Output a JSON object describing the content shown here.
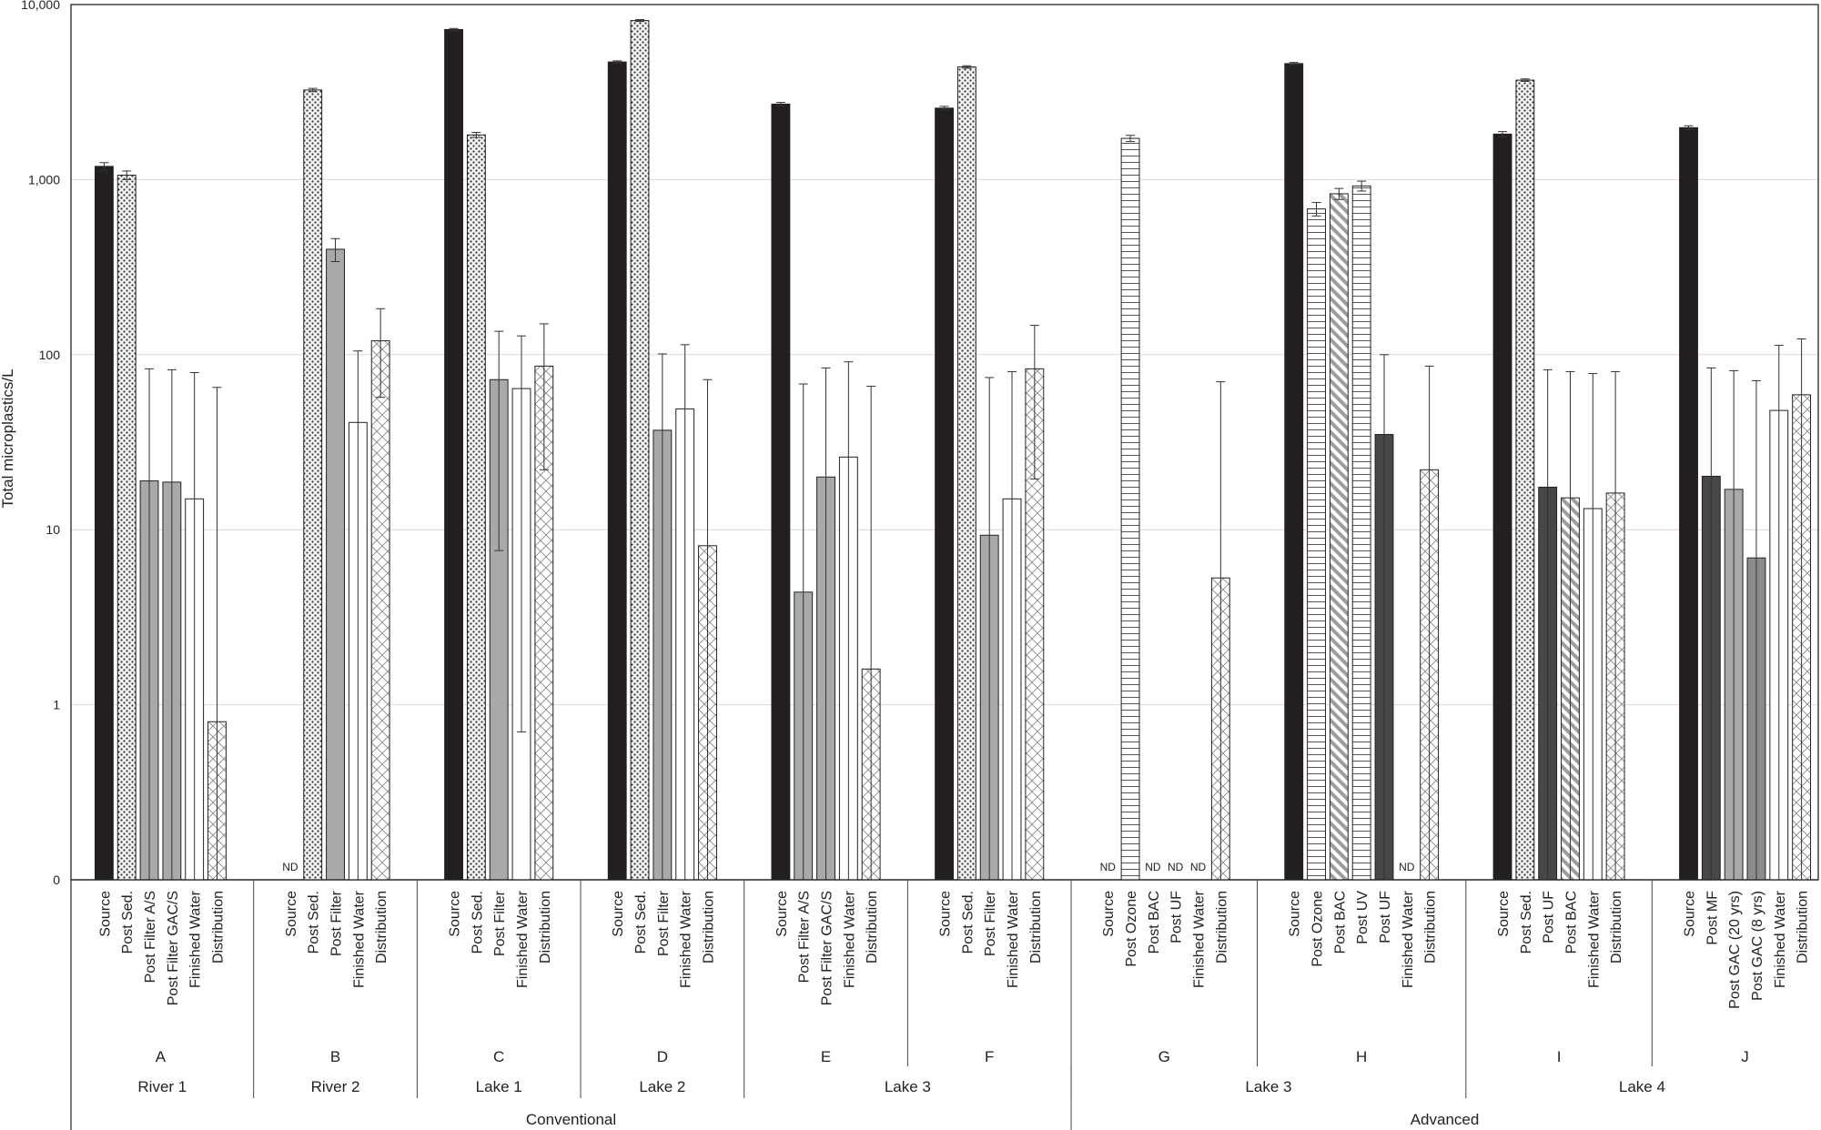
{
  "chart_data": {
    "type": "bar",
    "title": "",
    "ylabel": "Total microplastics/L",
    "xlabel": "",
    "yscale": "log",
    "ylim": [
      0.1,
      10000
    ],
    "yticks": [
      {
        "value": 0.1,
        "label": "0"
      },
      {
        "value": 1,
        "label": "1"
      },
      {
        "value": 10,
        "label": "10"
      },
      {
        "value": 100,
        "label": "100"
      },
      {
        "value": 1000,
        "label": "1,000"
      },
      {
        "value": 10000,
        "label": "10,000"
      }
    ],
    "grid": true,
    "nd_label": "ND",
    "colors": {
      "source": "#231f20",
      "sed": "#ececec",
      "filter": "#a9a9a9",
      "finished": "#ffffff",
      "distribution": "#f4f4f4",
      "ozone": "#ffffff",
      "bac": "#d8d8d8",
      "uf": "#474747",
      "gac8": "#8c8c8c",
      "gridline": "#d9d9d9",
      "axis": "#222222"
    },
    "plants": [
      {
        "name": "A",
        "source_type": "River 1",
        "treatment": "Conventional",
        "bars": [
          {
            "label": "Source",
            "value": 1190,
            "err": [
              1130,
              1250
            ],
            "pattern": "source"
          },
          {
            "label": "Post Sed.",
            "value": 1060,
            "err": [
              1000,
              1120
            ],
            "pattern": "sed"
          },
          {
            "label": "Post Filter A/S",
            "value": 19,
            "err": [
              0.1,
              83
            ],
            "pattern": "filter"
          },
          {
            "label": "Post Filter GAC/S",
            "value": 18.7,
            "err": [
              0.1,
              82
            ],
            "pattern": "filter"
          },
          {
            "label": "Finished Water",
            "value": 15,
            "err": [
              0.1,
              79
            ],
            "pattern": "finished"
          },
          {
            "label": "Distribution",
            "value": 0.8,
            "err": [
              0.1,
              65
            ],
            "pattern": "distribution"
          }
        ]
      },
      {
        "name": "B",
        "source_type": "River 2",
        "treatment": "Conventional",
        "bars": [
          {
            "label": "Source",
            "value": null,
            "nd": true
          },
          {
            "label": "Post Sed.",
            "value": 3250,
            "err": [
              3180,
              3320
            ],
            "pattern": "sed"
          },
          {
            "label": "Post Filter",
            "value": 400,
            "err": [
              340,
              460
            ],
            "pattern": "filter"
          },
          {
            "label": "Finished Water",
            "value": 41,
            "err": [
              0.1,
              105
            ],
            "pattern": "finished"
          },
          {
            "label": "Distribution",
            "value": 120,
            "err": [
              57,
              183
            ],
            "pattern": "distribution"
          }
        ]
      },
      {
        "name": "C",
        "source_type": "Lake 1",
        "treatment": "Conventional",
        "bars": [
          {
            "label": "Source",
            "value": 7200,
            "err": [
              7100,
              7300
            ],
            "pattern": "source"
          },
          {
            "label": "Post Sed.",
            "value": 1800,
            "err": [
              1740,
              1860
            ],
            "pattern": "sed"
          },
          {
            "label": "Post Filter",
            "value": 72,
            "err": [
              7.6,
              136
            ],
            "pattern": "filter"
          },
          {
            "label": "Finished Water",
            "value": 64,
            "err": [
              0.7,
              128
            ],
            "pattern": "finished"
          },
          {
            "label": "Distribution",
            "value": 86,
            "err": [
              22,
              150
            ],
            "pattern": "distribution"
          }
        ]
      },
      {
        "name": "D",
        "source_type": "Lake 2",
        "treatment": "Conventional",
        "bars": [
          {
            "label": "Source",
            "value": 4700,
            "err": [
              4630,
              4770
            ],
            "pattern": "source"
          },
          {
            "label": "Post Sed.",
            "value": 8100,
            "err": [
              8000,
              8200
            ],
            "pattern": "sed"
          },
          {
            "label": "Post Filter",
            "value": 37,
            "err": [
              0.1,
              101
            ],
            "pattern": "filter"
          },
          {
            "label": "Finished Water",
            "value": 49,
            "err": [
              0.1,
              114
            ],
            "pattern": "finished"
          },
          {
            "label": "Distribution",
            "value": 8.1,
            "err": [
              0.1,
              72
            ],
            "pattern": "distribution"
          }
        ]
      },
      {
        "name": "E",
        "source_type": "Lake 3",
        "treatment": "Conventional",
        "bars": [
          {
            "label": "Source",
            "value": 2700,
            "err": [
              2640,
              2760
            ],
            "pattern": "source"
          },
          {
            "label": "Post Filter A/S",
            "value": 4.4,
            "err": [
              0.1,
              68
            ],
            "pattern": "filter"
          },
          {
            "label": "Post Filter GAC/S",
            "value": 20,
            "err": [
              0.1,
              84
            ],
            "pattern": "filter"
          },
          {
            "label": "Finished Water",
            "value": 26,
            "err": [
              0.1,
              91
            ],
            "pattern": "finished"
          },
          {
            "label": "Distribution",
            "value": 1.6,
            "err": [
              0.1,
              66
            ],
            "pattern": "distribution"
          }
        ]
      },
      {
        "name": "F",
        "source_type": "Lake 3",
        "treatment": "Conventional",
        "bars": [
          {
            "label": "Source",
            "value": 2560,
            "err": [
              2500,
              2620
            ],
            "pattern": "source"
          },
          {
            "label": "Post Sed.",
            "value": 4400,
            "err": [
              4330,
              4470
            ],
            "pattern": "sed"
          },
          {
            "label": "Post Filter",
            "value": 9.3,
            "err": [
              0.1,
              74
            ],
            "pattern": "filter"
          },
          {
            "label": "Finished Water",
            "value": 15,
            "err": [
              0.1,
              80
            ],
            "pattern": "finished"
          },
          {
            "label": "Distribution",
            "value": 83,
            "err": [
              19.5,
              147
            ],
            "pattern": "distribution"
          }
        ]
      },
      {
        "name": "G",
        "source_type": "Lake 3",
        "treatment": "Advanced",
        "bars": [
          {
            "label": "Source",
            "value": null,
            "nd": true
          },
          {
            "label": "Post Ozone",
            "value": 1720,
            "err": [
              1650,
              1790
            ],
            "pattern": "ozone"
          },
          {
            "label": "Post BAC",
            "value": null,
            "nd": true
          },
          {
            "label": "Post UF",
            "value": null,
            "nd": true
          },
          {
            "label": "Finished Water",
            "value": null,
            "nd": true
          },
          {
            "label": "Distribution",
            "value": 5.3,
            "err": [
              0.1,
              70
            ],
            "pattern": "distribution"
          }
        ]
      },
      {
        "name": "H",
        "source_type": "Lake 3",
        "treatment": "Advanced",
        "bars": [
          {
            "label": "Source",
            "value": 4600,
            "err": [
              4530,
              4670
            ],
            "pattern": "source"
          },
          {
            "label": "Post Ozone",
            "value": 680,
            "err": [
              620,
              740
            ],
            "pattern": "ozone"
          },
          {
            "label": "Post BAC",
            "value": 830,
            "err": [
              770,
              890
            ],
            "pattern": "bac"
          },
          {
            "label": "Post UV",
            "value": 920,
            "err": [
              860,
              980
            ],
            "pattern": "ozone"
          },
          {
            "label": "Post UF",
            "value": 35,
            "err": [
              0.1,
              100
            ],
            "pattern": "uf"
          },
          {
            "label": "Finished Water",
            "value": null,
            "nd": true
          },
          {
            "label": "Distribution",
            "value": 22,
            "err": [
              0.1,
              86
            ],
            "pattern": "distribution"
          }
        ]
      },
      {
        "name": "I",
        "source_type": "Lake 4",
        "treatment": "Advanced",
        "bars": [
          {
            "label": "Source",
            "value": 1820,
            "err": [
              1760,
              1880
            ],
            "pattern": "source"
          },
          {
            "label": "Post Sed.",
            "value": 3700,
            "err": [
              3640,
              3760
            ],
            "pattern": "sed"
          },
          {
            "label": "Post UF",
            "value": 17.5,
            "err": [
              0.1,
              82
            ],
            "pattern": "uf"
          },
          {
            "label": "Post BAC",
            "value": 15.2,
            "err": [
              0.1,
              80
            ],
            "pattern": "bac"
          },
          {
            "label": "Finished Water",
            "value": 13.2,
            "err": [
              0.1,
              78
            ],
            "pattern": "finished"
          },
          {
            "label": "Distribution",
            "value": 16.2,
            "err": [
              0.1,
              80
            ],
            "pattern": "distribution"
          }
        ]
      },
      {
        "name": "J",
        "source_type": "Lake 4",
        "treatment": "Advanced",
        "bars": [
          {
            "label": "Source",
            "value": 1980,
            "err": [
              1930,
              2030
            ],
            "pattern": "source"
          },
          {
            "label": "Post MF",
            "value": 20.2,
            "err": [
              0.1,
              84
            ],
            "pattern": "uf"
          },
          {
            "label": "Post GAC (20 yrs)",
            "value": 17,
            "err": [
              0.1,
              81
            ],
            "pattern": "filter"
          },
          {
            "label": "Post GAC (8 yrs)",
            "value": 6.9,
            "err": [
              0.1,
              71
            ],
            "pattern": "gac8"
          },
          {
            "label": "Finished Water",
            "value": 48,
            "err": [
              0.1,
              113
            ],
            "pattern": "finished"
          },
          {
            "label": "Distribution",
            "value": 59,
            "err": [
              0.1,
              123
            ],
            "pattern": "distribution"
          }
        ]
      }
    ],
    "source_groups": [
      {
        "label": "River 1",
        "plants": [
          "A"
        ]
      },
      {
        "label": "River 2",
        "plants": [
          "B"
        ]
      },
      {
        "label": "Lake 1",
        "plants": [
          "C"
        ]
      },
      {
        "label": "Lake 2",
        "plants": [
          "D"
        ]
      },
      {
        "label": "Lake 3",
        "plants": [
          "E",
          "F"
        ]
      },
      {
        "label": "Lake 3",
        "plants": [
          "G",
          "H"
        ]
      },
      {
        "label": "Lake 4",
        "plants": [
          "I",
          "J"
        ]
      }
    ],
    "treatment_groups": [
      {
        "label": "Conventional",
        "plants": [
          "A",
          "B",
          "C",
          "D",
          "E",
          "F"
        ]
      },
      {
        "label": "Advanced",
        "plants": [
          "G",
          "H",
          "I",
          "J"
        ]
      }
    ]
  }
}
